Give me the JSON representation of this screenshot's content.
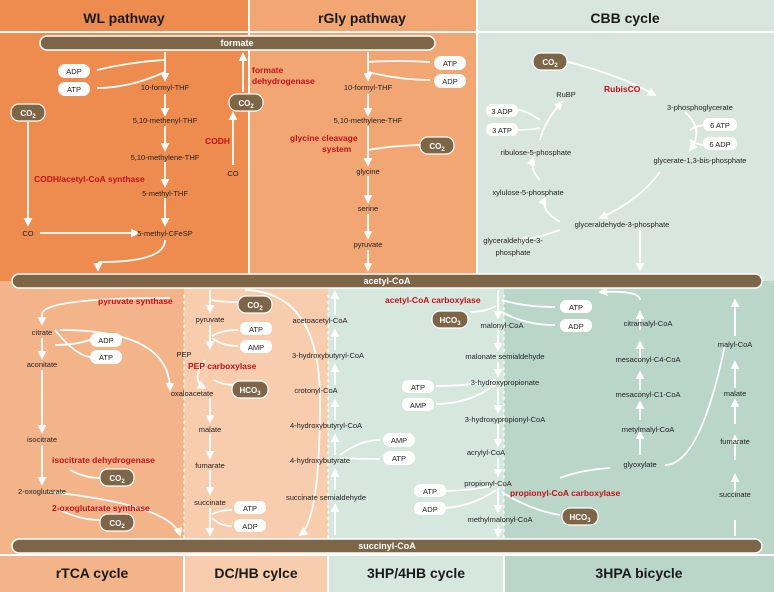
{
  "panels": {
    "wl": "WL pathway",
    "rgly": "rGly pathway",
    "cbb": "CBB cycle",
    "rtca": "rTCA cycle",
    "dchb": "DC/HB cylce",
    "hp4hb": "3HP/4HB cycle",
    "hpa": "3HPA bicycle"
  },
  "bars": {
    "formate": "formate",
    "acetyl": "acetyl-CoA",
    "succinyl": "succinyl-CoA"
  },
  "wl": {
    "m1": "10-formyl-THF",
    "m2": "5,10-methenyl-THF",
    "m3": "5,10-methylene-THF",
    "m4": "5-methyl-THF",
    "m5": "5-methyl-CFeSP",
    "co_left": "CO",
    "co_mid": "CO",
    "adp": "ADP",
    "atp": "ATP",
    "co2_left": "CO2",
    "co2_mid": "CO2",
    "enz_codh": "CODH",
    "enz_codh_acs": "CODH/acetyl-CoA synthase",
    "enz_fdh1": "formate",
    "enz_fdh2": "dehydrogenase"
  },
  "rgly": {
    "m1": "10-formyl-THF",
    "m2": "5,10-methylene-THF",
    "m3": "glycine",
    "m4": "serine",
    "m5": "pyruvate",
    "atp": "ATP",
    "adp": "ADP",
    "co2": "CO2",
    "enz1": "glycine cleavage",
    "enz2": "system"
  },
  "cbb": {
    "co2": "CO2",
    "rubp": "RuBP",
    "rubisco": "RubisCO",
    "pg": "3-phosphoglycerate",
    "atp6": "6 ATP",
    "adp6": "6 ADP",
    "bpg": "glycerate-1,3-bis-phosphate",
    "g3p": "glyceraldehyde-3-phosphate",
    "xu5p": "xylulose-5-phosphate",
    "ru5p": "ribulose-5-phosphate",
    "adp3": "3 ADP",
    "atp3": "3 ATP",
    "g3p_out1": "glyceraldehyde-3-",
    "g3p_out2": "phosphate"
  },
  "rtca": {
    "citrate": "citrate",
    "aconitate": "aconitate",
    "isocitrate": "isocitrate",
    "oxoglut": "2-oxoglutarate",
    "adp": "ADP",
    "atp": "ATP",
    "co2_1": "CO2",
    "co2_2": "CO2",
    "enz_idh": "isocitrate dehydrogenase",
    "enz_ogs": "2-oxoglutarate synthase"
  },
  "dchb": {
    "pyruvate": "pyruvate",
    "pep": "PEP",
    "oxaloacetate": "oxaloacetate",
    "malate": "malate",
    "fumarate": "fumarate",
    "succinate": "succinate",
    "atp1": "ATP",
    "amp": "AMP",
    "atp2": "ATP",
    "adp": "ADP",
    "co2": "CO2",
    "hco3": "HCO3",
    "enz_ps": "pyruvate synthase",
    "enz_pepc": "PEP carboxylase"
  },
  "hp4hb": {
    "acetoacetyl": "acetoacetyl-CoA",
    "hbutyryl": "3-hydroxybutyryl-CoA",
    "crotonyl": "crotonyl-CoA",
    "hb4coa": "4-hydroxybutyryl-CoA",
    "hb4": "4-hydroxybutyrate",
    "ssa": "succinate semialdehyde",
    "amp": "AMP",
    "atp": "ATP",
    "malonyl": "malonyl-CoA",
    "msa": "malonate semialdehyde",
    "hp3": "3-hydroxypropionate",
    "hpcoa": "3-hydroxypropionyl-CoA",
    "acrylyl": "acrylyl-CoA",
    "propionyl": "propionyl-CoA",
    "methylmalonyl": "methylmalonyl-CoA",
    "atp_a": "ATP",
    "adp_a": "ADP",
    "atp_b": "ATP",
    "amp_b": "AMP",
    "atp_c": "ATP",
    "adp_c": "ADP",
    "hco3_a": "HCO3",
    "hco3_b": "HCO3",
    "enz_acc": "acetyl-CoA carboxylase",
    "enz_pcc": "propionyl-CoA carboxylase"
  },
  "hpa": {
    "citramalyl": "citramalyl-CoA",
    "mesc4": "mesaconyl-C4-CoA",
    "mesc1": "mesaconyl-C1-CoA",
    "metylmalyl": "metylmalyl-CoA",
    "glyoxylate": "glyoxylate",
    "malyl": "malyl-CoA",
    "malate": "malate",
    "fumarate": "fumarate",
    "succinate": "succinate"
  },
  "colors": {
    "wl": "#ee8c50",
    "rgly": "#f2a673",
    "cbb": "#d8e6df",
    "rtca": "#f4b48a",
    "dchb": "#f8cdae",
    "hp4hb": "#d6e7de",
    "hpa": "#b9d6c8",
    "bar": "#7d6548",
    "enzyme": "#c0121a"
  }
}
